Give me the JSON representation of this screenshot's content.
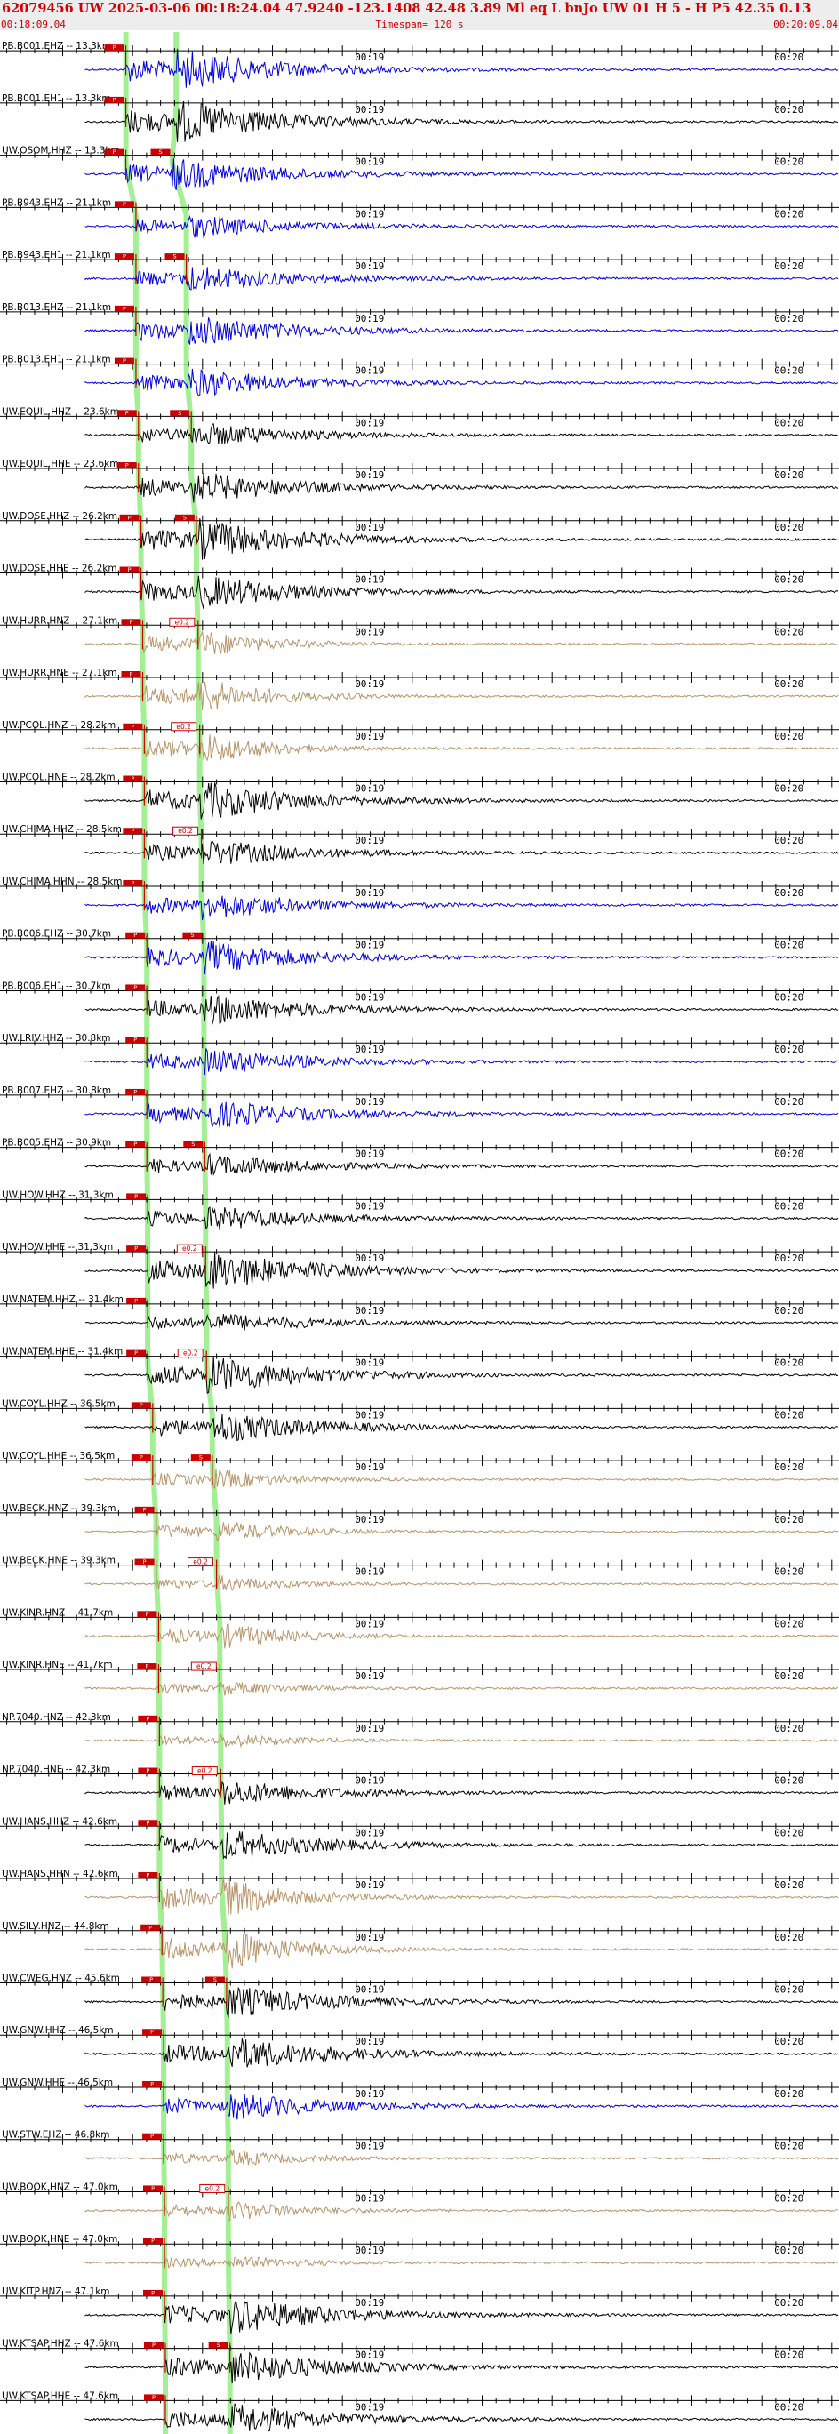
{
  "header": {
    "title": "62079456 UW 2025-03-06 00:18:24.04   47.9240 -123.1408  42.48  3.89 Ml  eq  L bnJo     UW 01  H   5  -  H P5   42.35  0.13",
    "start_time": "00:18:09.04",
    "timespan": "Timespan= 120 s",
    "end_time": "00:20:09.04"
  },
  "tick_labels": [
    "00:19",
    "00:20"
  ],
  "colors": {
    "short_period": "#0000dd",
    "broadband": "#000000",
    "strong_motion": "#b8946a",
    "pick_line": "#99ee88",
    "pick_box": "#cc0000",
    "header_text": "#d40000"
  },
  "phase_labels": {
    "p": "P",
    "s": "S",
    "weighted": "e0.2"
  },
  "channels": [
    {
      "label": "PB.B001.EHZ -- 13.3km",
      "type": "short_period",
      "p": 0.15,
      "s": 0.21,
      "amp": 0.9,
      "spick": 0
    },
    {
      "label": "PB.B001.EH1 -- 13.3km",
      "type": "broadband",
      "p": 0.15,
      "s": 0.21,
      "amp": 0.95,
      "spick": 0
    },
    {
      "label": "UW.OSOM.HHZ -- 13.3km",
      "type": "short_period",
      "p": 0.15,
      "s": 0.205,
      "amp": 0.7,
      "spick": 1
    },
    {
      "label": "PB.B943.EHZ -- 21.1km",
      "type": "short_period",
      "p": 0.162,
      "s": 0.222,
      "amp": 0.5,
      "spick": 0
    },
    {
      "label": "PB.B943.EH1 -- 21.1km",
      "type": "short_period",
      "p": 0.162,
      "s": 0.222,
      "amp": 0.6,
      "spick": 1
    },
    {
      "label": "PB.B013.EHZ -- 21.1km",
      "type": "short_period",
      "p": 0.162,
      "s": 0.222,
      "amp": 0.7,
      "spick": 0
    },
    {
      "label": "PB.B013.EH1 -- 21.1km",
      "type": "short_period",
      "p": 0.162,
      "s": 0.222,
      "amp": 0.65,
      "spick": 0
    },
    {
      "label": "UW.EQUIL.HHZ -- 23.6km",
      "type": "broadband",
      "p": 0.165,
      "s": 0.228,
      "amp": 0.55,
      "spick": 1
    },
    {
      "label": "UW.EQUIL.HHE -- 23.6km",
      "type": "broadband",
      "p": 0.165,
      "s": 0.228,
      "amp": 0.7,
      "spick": 0
    },
    {
      "label": "UW.DOSE.HHZ -- 26.2km",
      "type": "broadband",
      "p": 0.168,
      "s": 0.234,
      "amp": 0.9,
      "spick": 1
    },
    {
      "label": "UW.DOSE.HHE -- 26.2km",
      "type": "broadband",
      "p": 0.168,
      "s": 0.234,
      "amp": 0.75,
      "spick": 0
    },
    {
      "label": "UW.HURR.HNZ -- 27.1km",
      "type": "strong_motion",
      "p": 0.17,
      "s": 0.236,
      "amp": 0.6,
      "spick": 2
    },
    {
      "label": "UW.HURR.HNE -- 27.1km",
      "type": "strong_motion",
      "p": 0.17,
      "s": 0.236,
      "amp": 0.8,
      "spick": 0
    },
    {
      "label": "UW.PCOL.HNZ -- 28.2km",
      "type": "strong_motion",
      "p": 0.172,
      "s": 0.238,
      "amp": 0.7,
      "spick": 2
    },
    {
      "label": "UW.PCOL.HNE -- 28.2km",
      "type": "broadband",
      "p": 0.172,
      "s": 0.238,
      "amp": 0.85,
      "spick": 0
    },
    {
      "label": "UW.CHIMA.HHZ -- 28.5km",
      "type": "broadband",
      "p": 0.172,
      "s": 0.24,
      "amp": 0.6,
      "spick": 2
    },
    {
      "label": "UW.CHIMA.HHN -- 28.5km",
      "type": "short_period",
      "p": 0.172,
      "s": 0.24,
      "amp": 0.65,
      "spick": 0
    },
    {
      "label": "PB.B006.EHZ -- 30.7km",
      "type": "short_period",
      "p": 0.175,
      "s": 0.243,
      "amp": 0.7,
      "spick": 1
    },
    {
      "label": "PB.B006.EH1 -- 30.7km",
      "type": "broadband",
      "p": 0.175,
      "s": 0.243,
      "amp": 0.7,
      "spick": 0
    },
    {
      "label": "UW.LRIV.HHZ -- 30.8km",
      "type": "short_period",
      "p": 0.175,
      "s": 0.243,
      "amp": 0.6,
      "spick": 0
    },
    {
      "label": "PB.B007.EHZ -- 30.8km",
      "type": "short_period",
      "p": 0.175,
      "s": 0.243,
      "amp": 0.65,
      "spick": 0
    },
    {
      "label": "PB.B005.EHZ -- 30.9km",
      "type": "broadband",
      "p": 0.175,
      "s": 0.244,
      "amp": 0.5,
      "spick": 1
    },
    {
      "label": "UW.HOW.HHZ -- 31.3km",
      "type": "broadband",
      "p": 0.176,
      "s": 0.245,
      "amp": 0.55,
      "spick": 0
    },
    {
      "label": "UW.HOW.HHE -- 31.3km",
      "type": "broadband",
      "p": 0.176,
      "s": 0.245,
      "amp": 0.9,
      "spick": 2
    },
    {
      "label": "UW.NATEM.HHZ -- 31.4km",
      "type": "broadband",
      "p": 0.176,
      "s": 0.246,
      "amp": 0.45,
      "spick": 0
    },
    {
      "label": "UW.NATEM.HHE -- 31.4km",
      "type": "broadband",
      "p": 0.176,
      "s": 0.246,
      "amp": 0.85,
      "spick": 2
    },
    {
      "label": "UW.COYL.HHZ -- 36.5km",
      "type": "broadband",
      "p": 0.182,
      "s": 0.253,
      "amp": 0.7,
      "spick": 0
    },
    {
      "label": "UW.COYL.HHE -- 36.5km",
      "type": "strong_motion",
      "p": 0.182,
      "s": 0.253,
      "amp": 0.45,
      "spick": 1
    },
    {
      "label": "UW.BECK.HNZ -- 39.3km",
      "type": "strong_motion",
      "p": 0.186,
      "s": 0.258,
      "amp": 0.5,
      "spick": 0
    },
    {
      "label": "UW.BECK.HNE -- 39.3km",
      "type": "strong_motion",
      "p": 0.186,
      "s": 0.258,
      "amp": 0.35,
      "spick": 2
    },
    {
      "label": "UW.KINR.HNZ -- 41.7km",
      "type": "strong_motion",
      "p": 0.189,
      "s": 0.262,
      "amp": 0.55,
      "spick": 0
    },
    {
      "label": "UW.KINR.HNE -- 41.7km",
      "type": "strong_motion",
      "p": 0.189,
      "s": 0.262,
      "amp": 0.3,
      "spick": 2
    },
    {
      "label": "NP.7040.HNZ -- 42.3km",
      "type": "strong_motion",
      "p": 0.19,
      "s": 0.263,
      "amp": 0.3,
      "spick": 0
    },
    {
      "label": "NP.7040.HNE -- 42.3km",
      "type": "broadband",
      "p": 0.19,
      "s": 0.263,
      "amp": 0.55,
      "spick": 2
    },
    {
      "label": "UW.HANS.HHZ -- 42.6km",
      "type": "broadband",
      "p": 0.19,
      "s": 0.264,
      "amp": 0.65,
      "spick": 0
    },
    {
      "label": "UW.HANS.HHN -- 42.6km",
      "type": "strong_motion",
      "p": 0.19,
      "s": 0.264,
      "amp": 0.9,
      "spick": 0
    },
    {
      "label": "UW.SILV.HNZ -- 44.8km",
      "type": "strong_motion",
      "p": 0.193,
      "s": 0.268,
      "amp": 0.9,
      "spick": 0
    },
    {
      "label": "UW.CWEG.HNZ -- 45.6km",
      "type": "broadband",
      "p": 0.194,
      "s": 0.27,
      "amp": 0.7,
      "spick": 1
    },
    {
      "label": "UW.GNW.HHZ -- 46.5km",
      "type": "broadband",
      "p": 0.195,
      "s": 0.271,
      "amp": 0.75,
      "spick": 0
    },
    {
      "label": "UW.GNW.HHE -- 46.5km",
      "type": "short_period",
      "p": 0.195,
      "s": 0.271,
      "amp": 0.6,
      "spick": 0
    },
    {
      "label": "UW.STW.EHZ -- 46.8km",
      "type": "strong_motion",
      "p": 0.195,
      "s": 0.272,
      "amp": 0.35,
      "spick": 0
    },
    {
      "label": "UW.BOOK.HNZ -- 47.0km",
      "type": "strong_motion",
      "p": 0.196,
      "s": 0.272,
      "amp": 0.45,
      "spick": 2
    },
    {
      "label": "UW.BOOK.HNE -- 47.0km",
      "type": "strong_motion",
      "p": 0.196,
      "s": 0.272,
      "amp": 0.3,
      "spick": 0
    },
    {
      "label": "UW.KITP.HNZ -- 47.1km",
      "type": "broadband",
      "p": 0.196,
      "s": 0.273,
      "amp": 0.8,
      "spick": 0
    },
    {
      "label": "UW.KTSAP.HHZ -- 47.6km",
      "type": "broadband",
      "p": 0.197,
      "s": 0.274,
      "amp": 0.75,
      "spick": 1
    },
    {
      "label": "UW.KTSAP.HHE -- 47.6km",
      "type": "broadband",
      "p": 0.197,
      "s": 0.274,
      "amp": 0.7,
      "spick": 0
    }
  ]
}
